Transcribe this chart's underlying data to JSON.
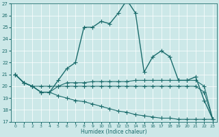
{
  "xlabel": "Humidex (Indice chaleur)",
  "xlim": [
    -0.5,
    23.5
  ],
  "ylim": [
    17,
    27
  ],
  "yticks": [
    17,
    18,
    19,
    20,
    21,
    22,
    23,
    24,
    25,
    26,
    27
  ],
  "xticks": [
    0,
    1,
    2,
    3,
    4,
    5,
    6,
    7,
    8,
    9,
    10,
    11,
    12,
    13,
    14,
    15,
    16,
    17,
    18,
    19,
    20,
    21,
    22,
    23
  ],
  "bg_color": "#cce8e8",
  "line_color": "#1a6b6b",
  "lines": [
    {
      "x": [
        0,
        1,
        2,
        3,
        4,
        5,
        6,
        7,
        8,
        9,
        10,
        11,
        12,
        13,
        14,
        15,
        16,
        17,
        18,
        19,
        20,
        21,
        22,
        23
      ],
      "y": [
        21.0,
        20.3,
        20.0,
        19.5,
        19.5,
        19.2,
        19.0,
        18.8,
        18.7,
        18.5,
        18.3,
        18.1,
        17.9,
        17.8,
        17.6,
        17.5,
        17.4,
        17.3,
        17.3,
        17.2,
        17.2,
        17.2,
        17.2,
        17.2
      ],
      "marker": "+",
      "linewidth": 0.8,
      "markersize": 4
    },
    {
      "x": [
        0,
        1,
        2,
        3,
        4,
        5,
        6,
        7,
        8,
        9,
        10,
        11,
        12,
        13,
        14,
        15,
        16,
        17,
        18,
        19,
        20,
        21,
        22,
        23
      ],
      "y": [
        21.0,
        20.3,
        20.0,
        19.5,
        19.5,
        20.0,
        20.0,
        20.0,
        20.0,
        20.0,
        20.0,
        20.0,
        20.0,
        20.0,
        20.0,
        20.0,
        20.0,
        20.0,
        20.0,
        20.0,
        20.0,
        20.0,
        19.5,
        17.2
      ],
      "marker": "+",
      "linewidth": 0.8,
      "markersize": 4
    },
    {
      "x": [
        0,
        1,
        2,
        3,
        4,
        5,
        6,
        7,
        8,
        9,
        10,
        11,
        12,
        13,
        14,
        15,
        16,
        17,
        18,
        19,
        20,
        21,
        22,
        23
      ],
      "y": [
        21.0,
        20.3,
        20.0,
        20.0,
        20.0,
        20.0,
        20.3,
        20.3,
        20.3,
        20.4,
        20.4,
        20.4,
        20.4,
        20.4,
        20.5,
        20.5,
        20.5,
        20.5,
        20.5,
        20.5,
        20.5,
        20.5,
        20.0,
        17.2
      ],
      "marker": "+",
      "linewidth": 0.8,
      "markersize": 4
    },
    {
      "x": [
        0,
        1,
        2,
        3,
        4,
        5,
        6,
        7,
        8,
        9,
        10,
        11,
        12,
        13,
        14,
        15,
        16,
        17,
        18,
        19,
        20,
        21,
        22,
        23
      ],
      "y": [
        21.0,
        20.3,
        20.0,
        19.5,
        19.5,
        20.5,
        21.5,
        22.0,
        25.0,
        25.0,
        25.5,
        25.3,
        26.2,
        27.3,
        26.2,
        21.2,
        22.5,
        23.0,
        22.5,
        20.5,
        20.5,
        20.8,
        18.8,
        17.2
      ],
      "marker": "+",
      "linewidth": 1.0,
      "markersize": 4
    }
  ]
}
